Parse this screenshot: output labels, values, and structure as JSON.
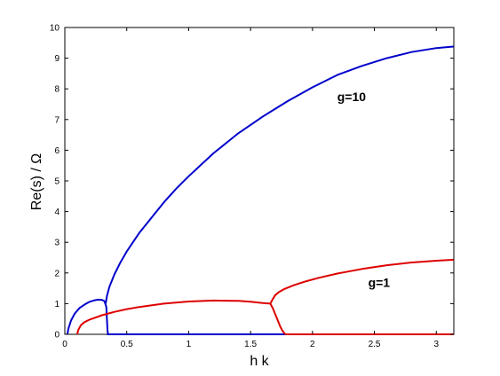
{
  "chart_data": {
    "type": "line",
    "xlabel": "h k",
    "ylabel": "Re(s) / Ω",
    "xlim": [
      0,
      3.1416
    ],
    "ylim": [
      0,
      10
    ],
    "xticks": [
      0,
      0.5,
      1,
      1.5,
      2,
      2.5,
      3
    ],
    "yticks": [
      0,
      1,
      2,
      3,
      4,
      5,
      6,
      7,
      8,
      9,
      10
    ],
    "xtick_labels": [
      "0",
      "0.5",
      "1",
      "1.5",
      "2",
      "2.5",
      "3"
    ],
    "ytick_labels": [
      "0",
      "1",
      "2",
      "3",
      "4",
      "5",
      "6",
      "7",
      "8",
      "9",
      "10"
    ],
    "grid": false,
    "legend": "none",
    "annotations": [
      {
        "text": "g=10",
        "x": 2.2,
        "y": 7.6
      },
      {
        "text": "g=1",
        "x": 2.45,
        "y": 1.55
      }
    ],
    "series": [
      {
        "color": "#0000cc",
        "x": [
          0.02,
          0.03,
          0.05,
          0.08,
          0.12,
          0.16,
          0.2,
          0.24,
          0.27,
          0.3,
          0.32,
          0.335,
          0.34,
          0.345,
          0.35
        ],
        "y": [
          0.0,
          0.2,
          0.45,
          0.68,
          0.86,
          0.97,
          1.06,
          1.11,
          1.13,
          1.12,
          1.08,
          0.9,
          0.5,
          0.1,
          0.0
        ]
      },
      {
        "color": "#0000cc",
        "x": [
          0.33,
          0.34,
          0.36,
          0.4,
          0.45,
          0.5,
          0.6,
          0.7,
          0.8,
          0.9,
          1.0,
          1.2,
          1.4,
          1.6,
          1.8,
          2.0,
          2.2,
          2.4,
          2.6,
          2.8,
          3.0,
          3.14
        ],
        "y": [
          1.0,
          1.25,
          1.55,
          1.95,
          2.35,
          2.7,
          3.3,
          3.8,
          4.3,
          4.75,
          5.15,
          5.9,
          6.55,
          7.1,
          7.6,
          8.05,
          8.45,
          8.75,
          9.0,
          9.2,
          9.33,
          9.38
        ]
      },
      {
        "color": "#0000cc",
        "x": [
          0.34,
          3.14
        ],
        "y": [
          0.0,
          0.0
        ]
      },
      {
        "color": "#dd0000",
        "x": [
          0.1,
          0.11,
          0.13,
          0.16,
          0.2,
          0.3,
          0.4,
          0.5,
          0.6,
          0.8,
          1.0,
          1.2,
          1.4,
          1.5,
          1.6,
          1.66,
          1.68,
          1.7,
          1.72,
          1.74,
          1.76,
          1.78
        ],
        "y": [
          0.0,
          0.15,
          0.3,
          0.4,
          0.48,
          0.62,
          0.73,
          0.82,
          0.89,
          1.0,
          1.07,
          1.1,
          1.09,
          1.06,
          1.02,
          1.0,
          0.85,
          0.65,
          0.45,
          0.25,
          0.1,
          0.0
        ]
      },
      {
        "color": "#dd0000",
        "x": [
          1.66,
          1.68,
          1.7,
          1.73,
          1.77,
          1.85,
          1.95,
          2.05,
          2.2,
          2.4,
          2.6,
          2.8,
          3.0,
          3.14
        ],
        "y": [
          1.0,
          1.15,
          1.28,
          1.38,
          1.47,
          1.6,
          1.73,
          1.84,
          1.98,
          2.13,
          2.25,
          2.34,
          2.4,
          2.43
        ]
      },
      {
        "color": "#dd0000",
        "x": [
          1.78,
          3.14
        ],
        "y": [
          0.0,
          0.0
        ]
      }
    ]
  }
}
